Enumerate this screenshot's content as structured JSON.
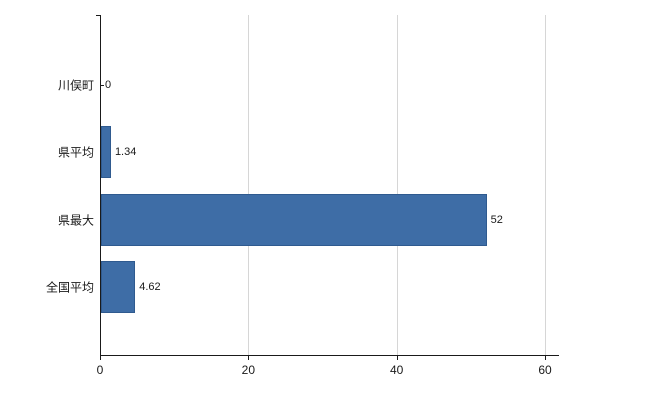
{
  "chart_data": {
    "type": "bar",
    "orientation": "horizontal",
    "categories": [
      "川俣町",
      "県平均",
      "県最大",
      "全国平均"
    ],
    "values": [
      0,
      1.34,
      52,
      4.62
    ],
    "value_labels": [
      "0",
      "1.34",
      "52",
      "4.62"
    ],
    "x_ticks": [
      0,
      20,
      40,
      60
    ],
    "x_tick_labels": [
      "0",
      "20",
      "40",
      "60"
    ],
    "xlim": [
      0,
      60
    ],
    "grid": true,
    "legend": "none",
    "bar_color": "#3e6da6",
    "bar_border_color": "#2f5a8f",
    "axis_color": "#1a1a1a",
    "gridline_color": "#d6d6d6",
    "background_color": "#ffffff"
  }
}
